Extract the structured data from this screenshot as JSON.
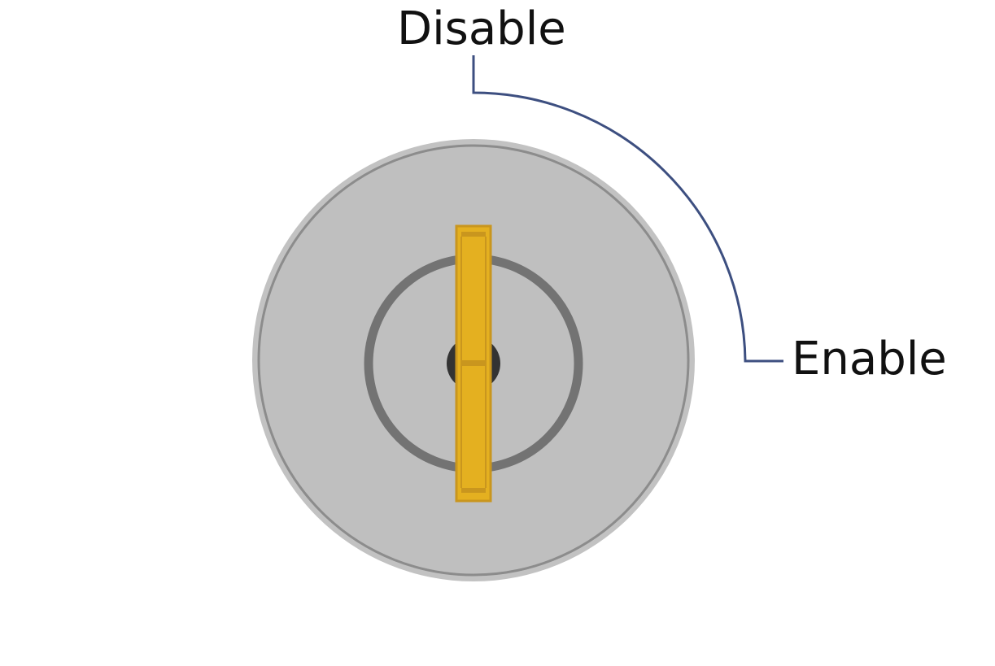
{
  "labels": {
    "disable": "Disable",
    "enable": "Enable"
  },
  "colors": {
    "background": "#ffffff",
    "outer_ring": "#c2c2c2",
    "face": "#bfbfbf",
    "face_edge": "#8c8c8c",
    "inner_ring": "#737373",
    "keyhole": "#333333",
    "key": "#e4b020",
    "key_border": "#c9961e",
    "indicator_line": "#3d4f80",
    "text": "#111111"
  },
  "icons": {
    "switch": "key-switch-icon",
    "key": "key-blade-icon"
  }
}
